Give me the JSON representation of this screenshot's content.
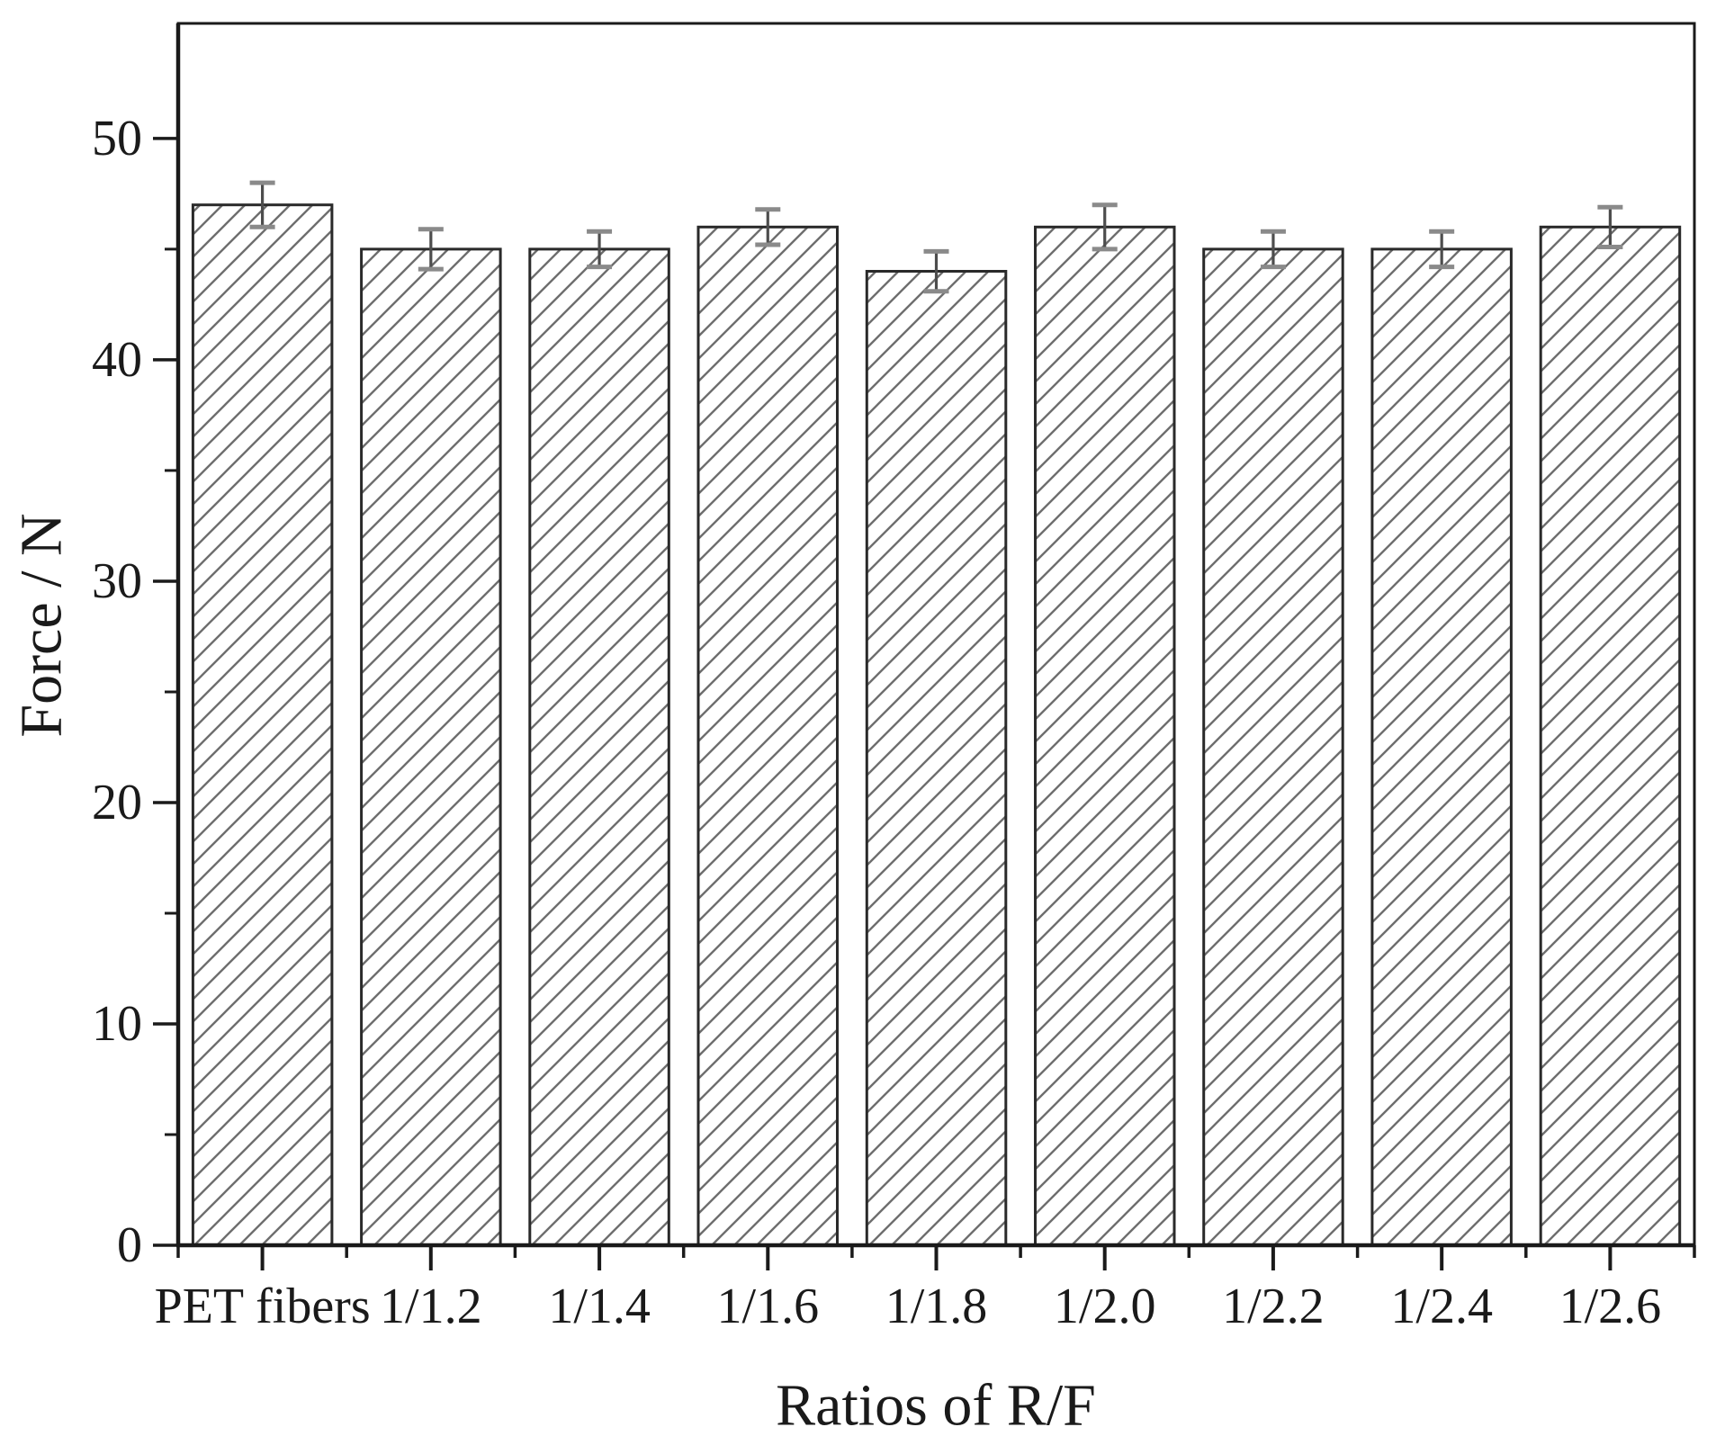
{
  "figure": {
    "background": "#ffffff"
  },
  "chart_data": {
    "type": "bar",
    "title": "",
    "xlabel": "Ratios of R/F",
    "ylabel": "Force / N",
    "categories": [
      "PET fibers",
      "1/1.2",
      "1/1.4",
      "1/1.6",
      "1/1.8",
      "1/2.0",
      "1/2.2",
      "1/2.4",
      "1/2.6"
    ],
    "values": [
      47,
      45,
      45,
      46,
      44,
      46,
      45,
      45,
      46
    ],
    "errors": [
      1.0,
      0.9,
      0.8,
      0.8,
      0.9,
      1.0,
      0.8,
      0.8,
      0.9
    ],
    "ylim": [
      0,
      55.2
    ],
    "yticks_major": [
      0,
      10,
      20,
      30,
      40,
      50
    ],
    "yticks_minor": [
      5,
      15,
      25,
      35,
      45
    ],
    "grid": false,
    "legend": "none",
    "styles": {
      "bar_fill": "diagonal-hatch",
      "hatch_color": "#6e6e6e",
      "bar_outline_color": "#2a2a2a",
      "error_line_color": "#4d4d4d",
      "error_cap_color": "#8a8a8a",
      "axis_color": "#1a1a1a",
      "background": "#ffffff"
    }
  }
}
